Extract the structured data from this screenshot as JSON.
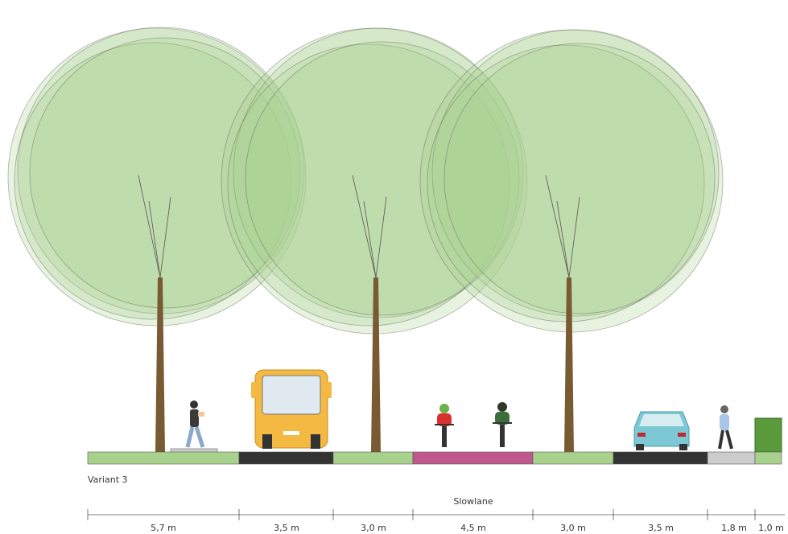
{
  "variant": "Variant 3",
  "lane_label": "Slowlane",
  "dimensions": [
    "5,7 m",
    "3,5 m",
    "3,0 m",
    "4,5 m",
    "3,0 m",
    "3,5 m",
    "1,8 m",
    "1,0 m"
  ]
}
